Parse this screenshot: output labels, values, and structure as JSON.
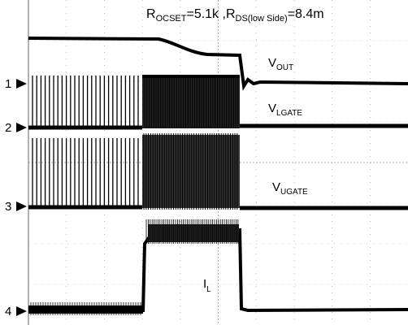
{
  "title": {
    "parts": [
      "R",
      "OCSET",
      "=5.1k ,R",
      "DS(low Side)",
      "=8.4m"
    ]
  },
  "channels": [
    "1",
    "2",
    "3",
    "4"
  ],
  "traces": [
    {
      "main": "V",
      "sub": "OUT"
    },
    {
      "main": "V",
      "sub": "LGATE"
    },
    {
      "main": "V",
      "sub": "UGATE"
    },
    {
      "main": "I",
      "sub": "L"
    }
  ]
}
